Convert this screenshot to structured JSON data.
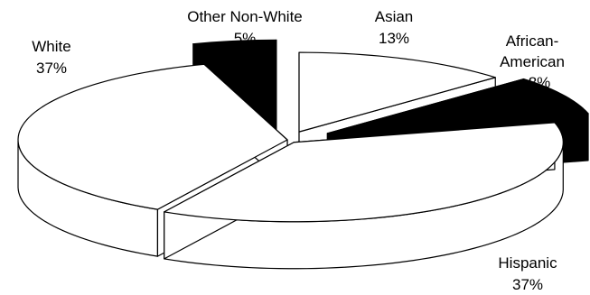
{
  "chart_data": {
    "type": "pie",
    "style": "3d-exploded",
    "title": "",
    "slices": [
      {
        "name": "Asian",
        "label": "Asian",
        "pct_label": "13%",
        "value": 13,
        "color": "#ffffff"
      },
      {
        "name": "African-American",
        "label": "African-American",
        "label_lines": [
          "African-",
          "American"
        ],
        "pct_label": "8%",
        "value": 8,
        "color": "#000000"
      },
      {
        "name": "Hispanic",
        "label": "Hispanic",
        "pct_label": "37%",
        "value": 37,
        "color": "#ffffff"
      },
      {
        "name": "White",
        "label": "White",
        "pct_label": "37%",
        "value": 37,
        "color": "#ffffff"
      },
      {
        "name": "Other Non-White",
        "label": "Other Non-White",
        "pct_label": "5%",
        "value": 5,
        "color": "#000000"
      }
    ],
    "legend": "none"
  }
}
